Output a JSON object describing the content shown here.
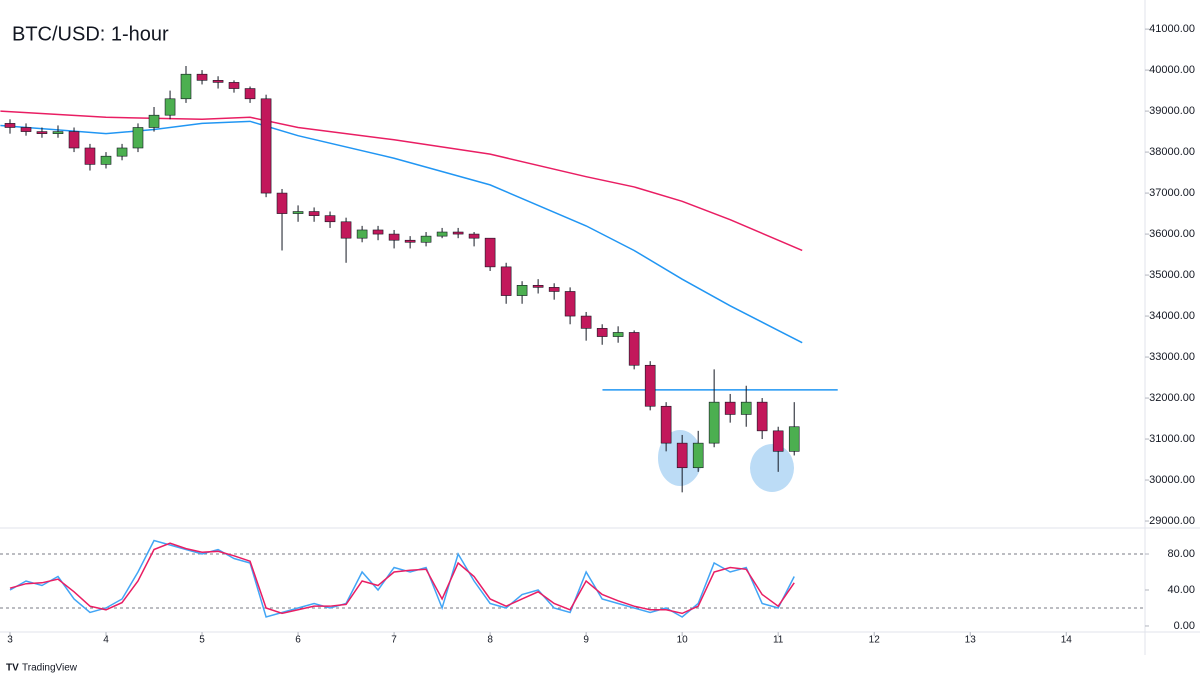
{
  "chart_data": [
    {
      "type": "candlestick",
      "title": "BTC/USD: 1-hour",
      "x": [
        3,
        3.167,
        3.333,
        3.5,
        3.667,
        3.833,
        4,
        4.167,
        4.333,
        4.5,
        4.667,
        4.833,
        5,
        5.167,
        5.333,
        5.5,
        5.667,
        5.833,
        6,
        6.167,
        6.333,
        6.5,
        6.667,
        6.833,
        7,
        7.167,
        7.333,
        7.5,
        7.667,
        7.833,
        8,
        8.167,
        8.333,
        8.5,
        8.667,
        8.833,
        9,
        9.167,
        9.333,
        9.5,
        9.667,
        9.833,
        10,
        10.167,
        10.333,
        10.5,
        10.667,
        10.833,
        11,
        11.167
      ],
      "open": [
        38700,
        38600,
        38500,
        38450,
        38500,
        38100,
        37700,
        37900,
        38100,
        38600,
        38900,
        39300,
        39900,
        39750,
        39700,
        39550,
        39300,
        37000,
        36500,
        36550,
        36450,
        36300,
        35900,
        36100,
        36000,
        35850,
        35800,
        35950,
        36050,
        36000,
        35900,
        35200,
        34500,
        34750,
        34700,
        34600,
        34000,
        33700,
        33500,
        33600,
        32800,
        31800,
        30900,
        30300,
        30900,
        31900,
        31600,
        31900,
        31200,
        30700
      ],
      "high": [
        38800,
        38700,
        38600,
        38650,
        38600,
        38200,
        38000,
        38200,
        38700,
        39100,
        39500,
        40100,
        40000,
        39850,
        39750,
        39600,
        39400,
        37100,
        36700,
        36650,
        36550,
        36400,
        36200,
        36200,
        36100,
        35950,
        36050,
        36150,
        36150,
        36050,
        35900,
        35300,
        34850,
        34900,
        34800,
        34700,
        34100,
        33800,
        33750,
        33650,
        32900,
        31900,
        31100,
        31200,
        32700,
        32100,
        32300,
        32000,
        31300,
        31900
      ],
      "low": [
        38450,
        38400,
        38350,
        38350,
        38000,
        37550,
        37600,
        37800,
        38000,
        38500,
        38800,
        39200,
        39650,
        39550,
        39450,
        39200,
        36900,
        35600,
        36300,
        36300,
        36150,
        35300,
        35800,
        35850,
        35650,
        35650,
        35700,
        35900,
        35900,
        35700,
        35100,
        34300,
        34300,
        34550,
        34400,
        33800,
        33400,
        33300,
        33350,
        32700,
        31700,
        30700,
        29700,
        30200,
        30800,
        31400,
        31300,
        31000,
        30200,
        30600
      ],
      "close": [
        38600,
        38500,
        38450,
        38500,
        38100,
        37700,
        37900,
        38100,
        38600,
        38900,
        39300,
        39900,
        39750,
        39700,
        39550,
        39300,
        37000,
        36500,
        36550,
        36450,
        36300,
        35900,
        36100,
        36000,
        35850,
        35800,
        35950,
        36050,
        36000,
        35900,
        35200,
        34500,
        34750,
        34700,
        34600,
        34000,
        33700,
        33500,
        33600,
        32800,
        31800,
        30900,
        30300,
        30900,
        31900,
        31600,
        31900,
        31200,
        30700,
        31300
      ],
      "up_color": "#4caf50",
      "down_color": "#c2185b",
      "series": [
        {
          "color": "#e91e63",
          "x": [
            2.9,
            4,
            5,
            5.5,
            6,
            7,
            8,
            9,
            9.5,
            10,
            10.5,
            11,
            11.25
          ],
          "values": [
            39000,
            38850,
            38800,
            38850,
            38600,
            38300,
            37950,
            37400,
            37150,
            36800,
            36350,
            35850,
            35600
          ]
        },
        {
          "color": "#2196f3",
          "x": [
            2.9,
            4,
            4.5,
            5,
            5.5,
            6,
            7,
            8,
            9,
            9.5,
            10,
            10.5,
            11,
            11.25
          ],
          "values": [
            38650,
            38450,
            38550,
            38700,
            38750,
            38400,
            37850,
            37200,
            36200,
            35600,
            34900,
            34250,
            33650,
            33350
          ]
        }
      ],
      "hline": {
        "y": 32200,
        "x": [
          9.17,
          11.62
        ],
        "color": "#2196f3"
      },
      "xlim": [
        2.896,
        14.82
      ],
      "ylim": [
        28830,
        41710
      ],
      "xticks": [
        3,
        4,
        5,
        6,
        7,
        8,
        9,
        10,
        11,
        12,
        13,
        14
      ],
      "yticks": [
        {
          "value": 29000,
          "label": "29000.00"
        },
        {
          "value": 30000,
          "label": "30000.00"
        },
        {
          "value": 31000,
          "label": "31000.00"
        },
        {
          "value": 32000,
          "label": "32000.00"
        },
        {
          "value": 33000,
          "label": "33000.00"
        },
        {
          "value": 34000,
          "label": "34000.00"
        },
        {
          "value": 35000,
          "label": "35000.00"
        },
        {
          "value": 36000,
          "label": "36000.00"
        },
        {
          "value": 37000,
          "label": "37000.00"
        },
        {
          "value": 38000,
          "label": "38000.00"
        },
        {
          "value": 39000,
          "label": "39000.00"
        },
        {
          "value": 40000,
          "label": "40000.00"
        },
        {
          "value": 41000,
          "label": "41000.00"
        }
      ]
    },
    {
      "type": "line",
      "x": [
        3,
        3.167,
        3.333,
        3.5,
        3.667,
        3.833,
        4,
        4.167,
        4.333,
        4.5,
        4.667,
        4.833,
        5,
        5.167,
        5.333,
        5.5,
        5.667,
        5.833,
        6,
        6.167,
        6.333,
        6.5,
        6.667,
        6.833,
        7,
        7.167,
        7.333,
        7.5,
        7.667,
        7.833,
        8,
        8.167,
        8.333,
        8.5,
        8.667,
        8.833,
        9,
        9.167,
        9.333,
        9.5,
        9.667,
        9.833,
        10,
        10.167,
        10.333,
        10.5,
        10.667,
        10.833,
        11,
        11.167
      ],
      "series": [
        {
          "color": "#42a5f5",
          "values": [
            40,
            50,
            45,
            55,
            30,
            15,
            20,
            30,
            60,
            95,
            90,
            85,
            80,
            85,
            75,
            70,
            10,
            15,
            20,
            25,
            20,
            25,
            60,
            40,
            65,
            60,
            65,
            20,
            80,
            50,
            25,
            20,
            35,
            40,
            20,
            15,
            60,
            30,
            25,
            20,
            15,
            20,
            10,
            25,
            70,
            60,
            65,
            25,
            20,
            55
          ]
        },
        {
          "color": "#e91e63",
          "values": [
            42,
            47,
            48,
            52,
            38,
            22,
            18,
            26,
            50,
            85,
            92,
            86,
            82,
            83,
            78,
            72,
            20,
            14,
            18,
            22,
            22,
            24,
            50,
            45,
            60,
            62,
            63,
            30,
            70,
            55,
            30,
            22,
            30,
            38,
            25,
            18,
            50,
            35,
            28,
            22,
            18,
            18,
            14,
            22,
            60,
            65,
            63,
            35,
            22,
            48
          ]
        }
      ],
      "levels": [
        20,
        80
      ],
      "xlim": [
        2.896,
        14.82
      ],
      "ylim": [
        -6.7,
        106.7
      ],
      "yticks": [
        {
          "value": 0,
          "label": "0.00"
        },
        {
          "value": 40,
          "label": "40.00"
        },
        {
          "value": 80,
          "label": "80.00"
        }
      ]
    }
  ],
  "footer": {
    "brand": "TradingView"
  }
}
